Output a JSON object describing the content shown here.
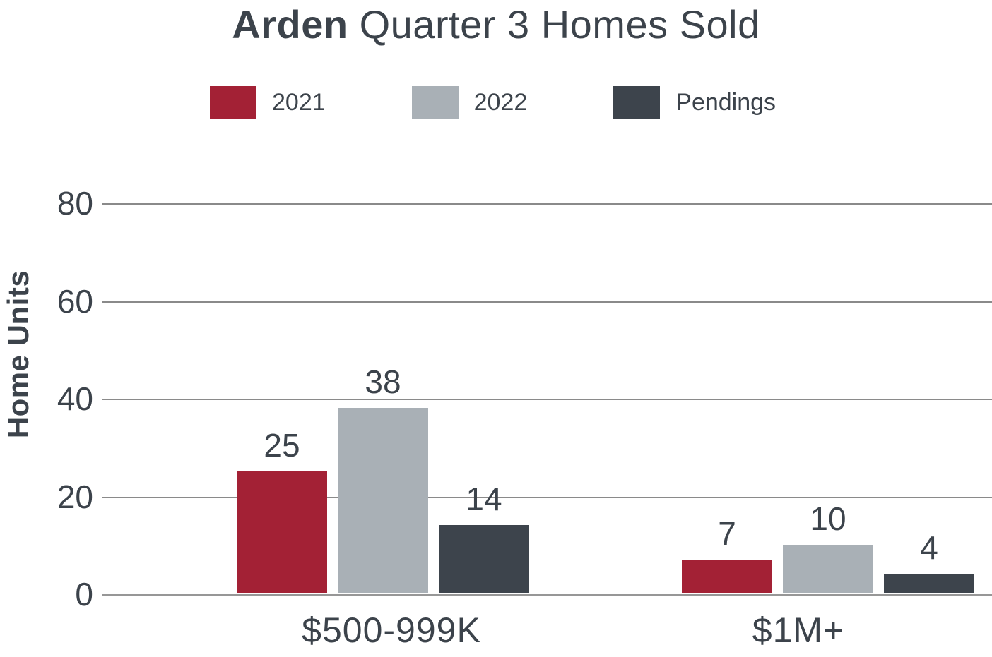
{
  "title": {
    "emphasis": "Arden",
    "rest": " Quarter 3 Homes Sold",
    "full": "Arden Quarter 3 Homes Sold"
  },
  "chart_data": {
    "type": "bar",
    "title": "Arden Quarter 3 Homes Sold",
    "categories": [
      "$500-999K",
      "$1M+"
    ],
    "series": [
      {
        "name": "2021",
        "color": "#a32135",
        "values": [
          25,
          7
        ]
      },
      {
        "name": "2022",
        "color": "#a9b0b6",
        "values": [
          38,
          10
        ]
      },
      {
        "name": "Pendings",
        "color": "#3d444c",
        "values": [
          14,
          4
        ]
      }
    ],
    "xlabel": "",
    "ylabel": "Home Units",
    "ylim": [
      0,
      80
    ],
    "yticks": [
      0,
      20,
      40,
      60,
      80
    ],
    "grid": true,
    "legend_position": "top",
    "value_labels": true
  },
  "colors": {
    "text": "#3c434b",
    "gridline": "#8a8a8a",
    "background": "#ffffff",
    "series_2021": "#a32135",
    "series_2022": "#a9b0b6",
    "series_pendings": "#3d444c"
  }
}
